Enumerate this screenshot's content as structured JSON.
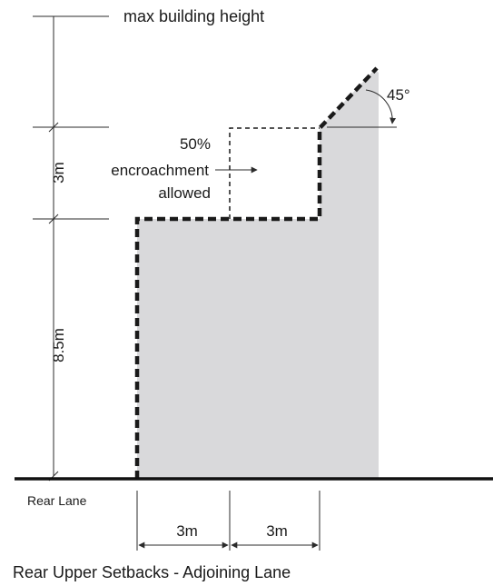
{
  "labels": {
    "max_building_height": "max building height",
    "dim_3m_vertical": "3m",
    "dim_8_5m_vertical": "8.5m",
    "encroachment_pct": "50%",
    "encroachment_text": "encroachment",
    "encroachment_allowed": "allowed",
    "angle": "45°",
    "rear_lane": "Rear Lane",
    "dim_3m_left": "3m",
    "dim_3m_right": "3m",
    "caption": "Rear Upper Setbacks - Adjoining Lane"
  },
  "colors": {
    "envelope_fill": "#d9d9db",
    "line": "#1a1a1a",
    "ground": "#111111"
  }
}
